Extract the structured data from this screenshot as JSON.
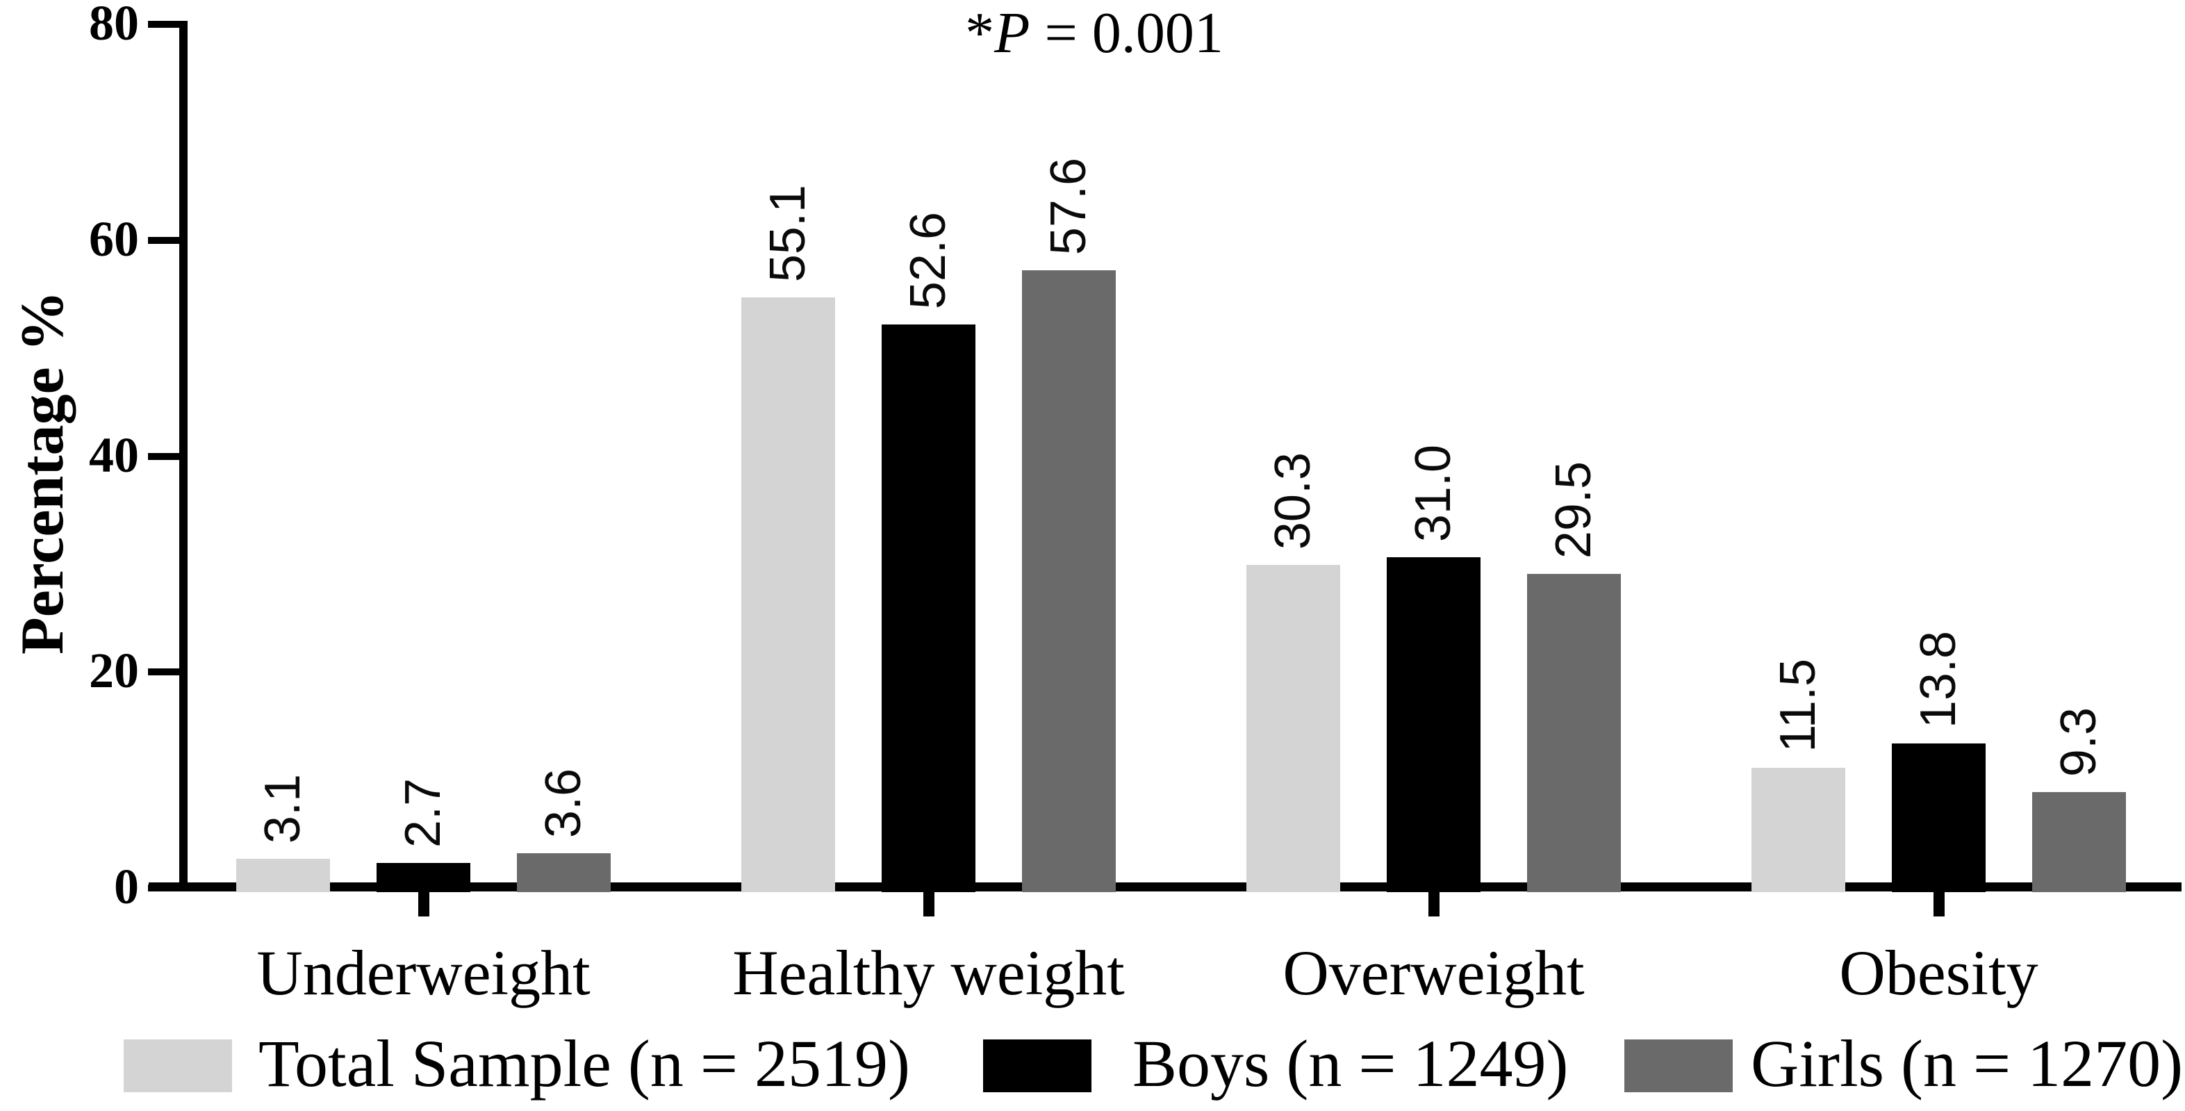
{
  "chart_data": {
    "type": "bar",
    "title_annotation": "*P = 0.001",
    "annotation_parts": {
      "star": "*",
      "p": "P",
      "rest": " = 0.001"
    },
    "ylabel": "Percentage %",
    "xlabel": "",
    "ylim": [
      0,
      80
    ],
    "yticks": [
      0,
      20,
      40,
      60,
      80
    ],
    "grid": false,
    "legend_position": "bottom",
    "categories": [
      "Underweight",
      "Healthy weight",
      "Overweight",
      "Obesity"
    ],
    "series": [
      {
        "name": "Total Sample (n = 2519)",
        "color": "#d4d4d4",
        "values": [
          3.1,
          55.1,
          30.3,
          11.5
        ],
        "labels": [
          "3.1",
          "55.1",
          "30.3",
          "11.5"
        ]
      },
      {
        "name": "Boys (n = 1249)",
        "color": "#000000",
        "values": [
          2.7,
          52.6,
          31.0,
          13.8
        ],
        "labels": [
          "2.7",
          "52.6",
          "31.0",
          "13.8"
        ]
      },
      {
        "name": "Girls (n = 1270)",
        "color": "#6a6a6a",
        "values": [
          3.6,
          57.6,
          29.5,
          9.3
        ],
        "labels": [
          "3.6",
          "57.6",
          "29.5",
          "9.3"
        ]
      }
    ],
    "colors": {
      "axis": "#000000",
      "value_label": "#0a0a0a",
      "background": "#ffffff"
    }
  }
}
